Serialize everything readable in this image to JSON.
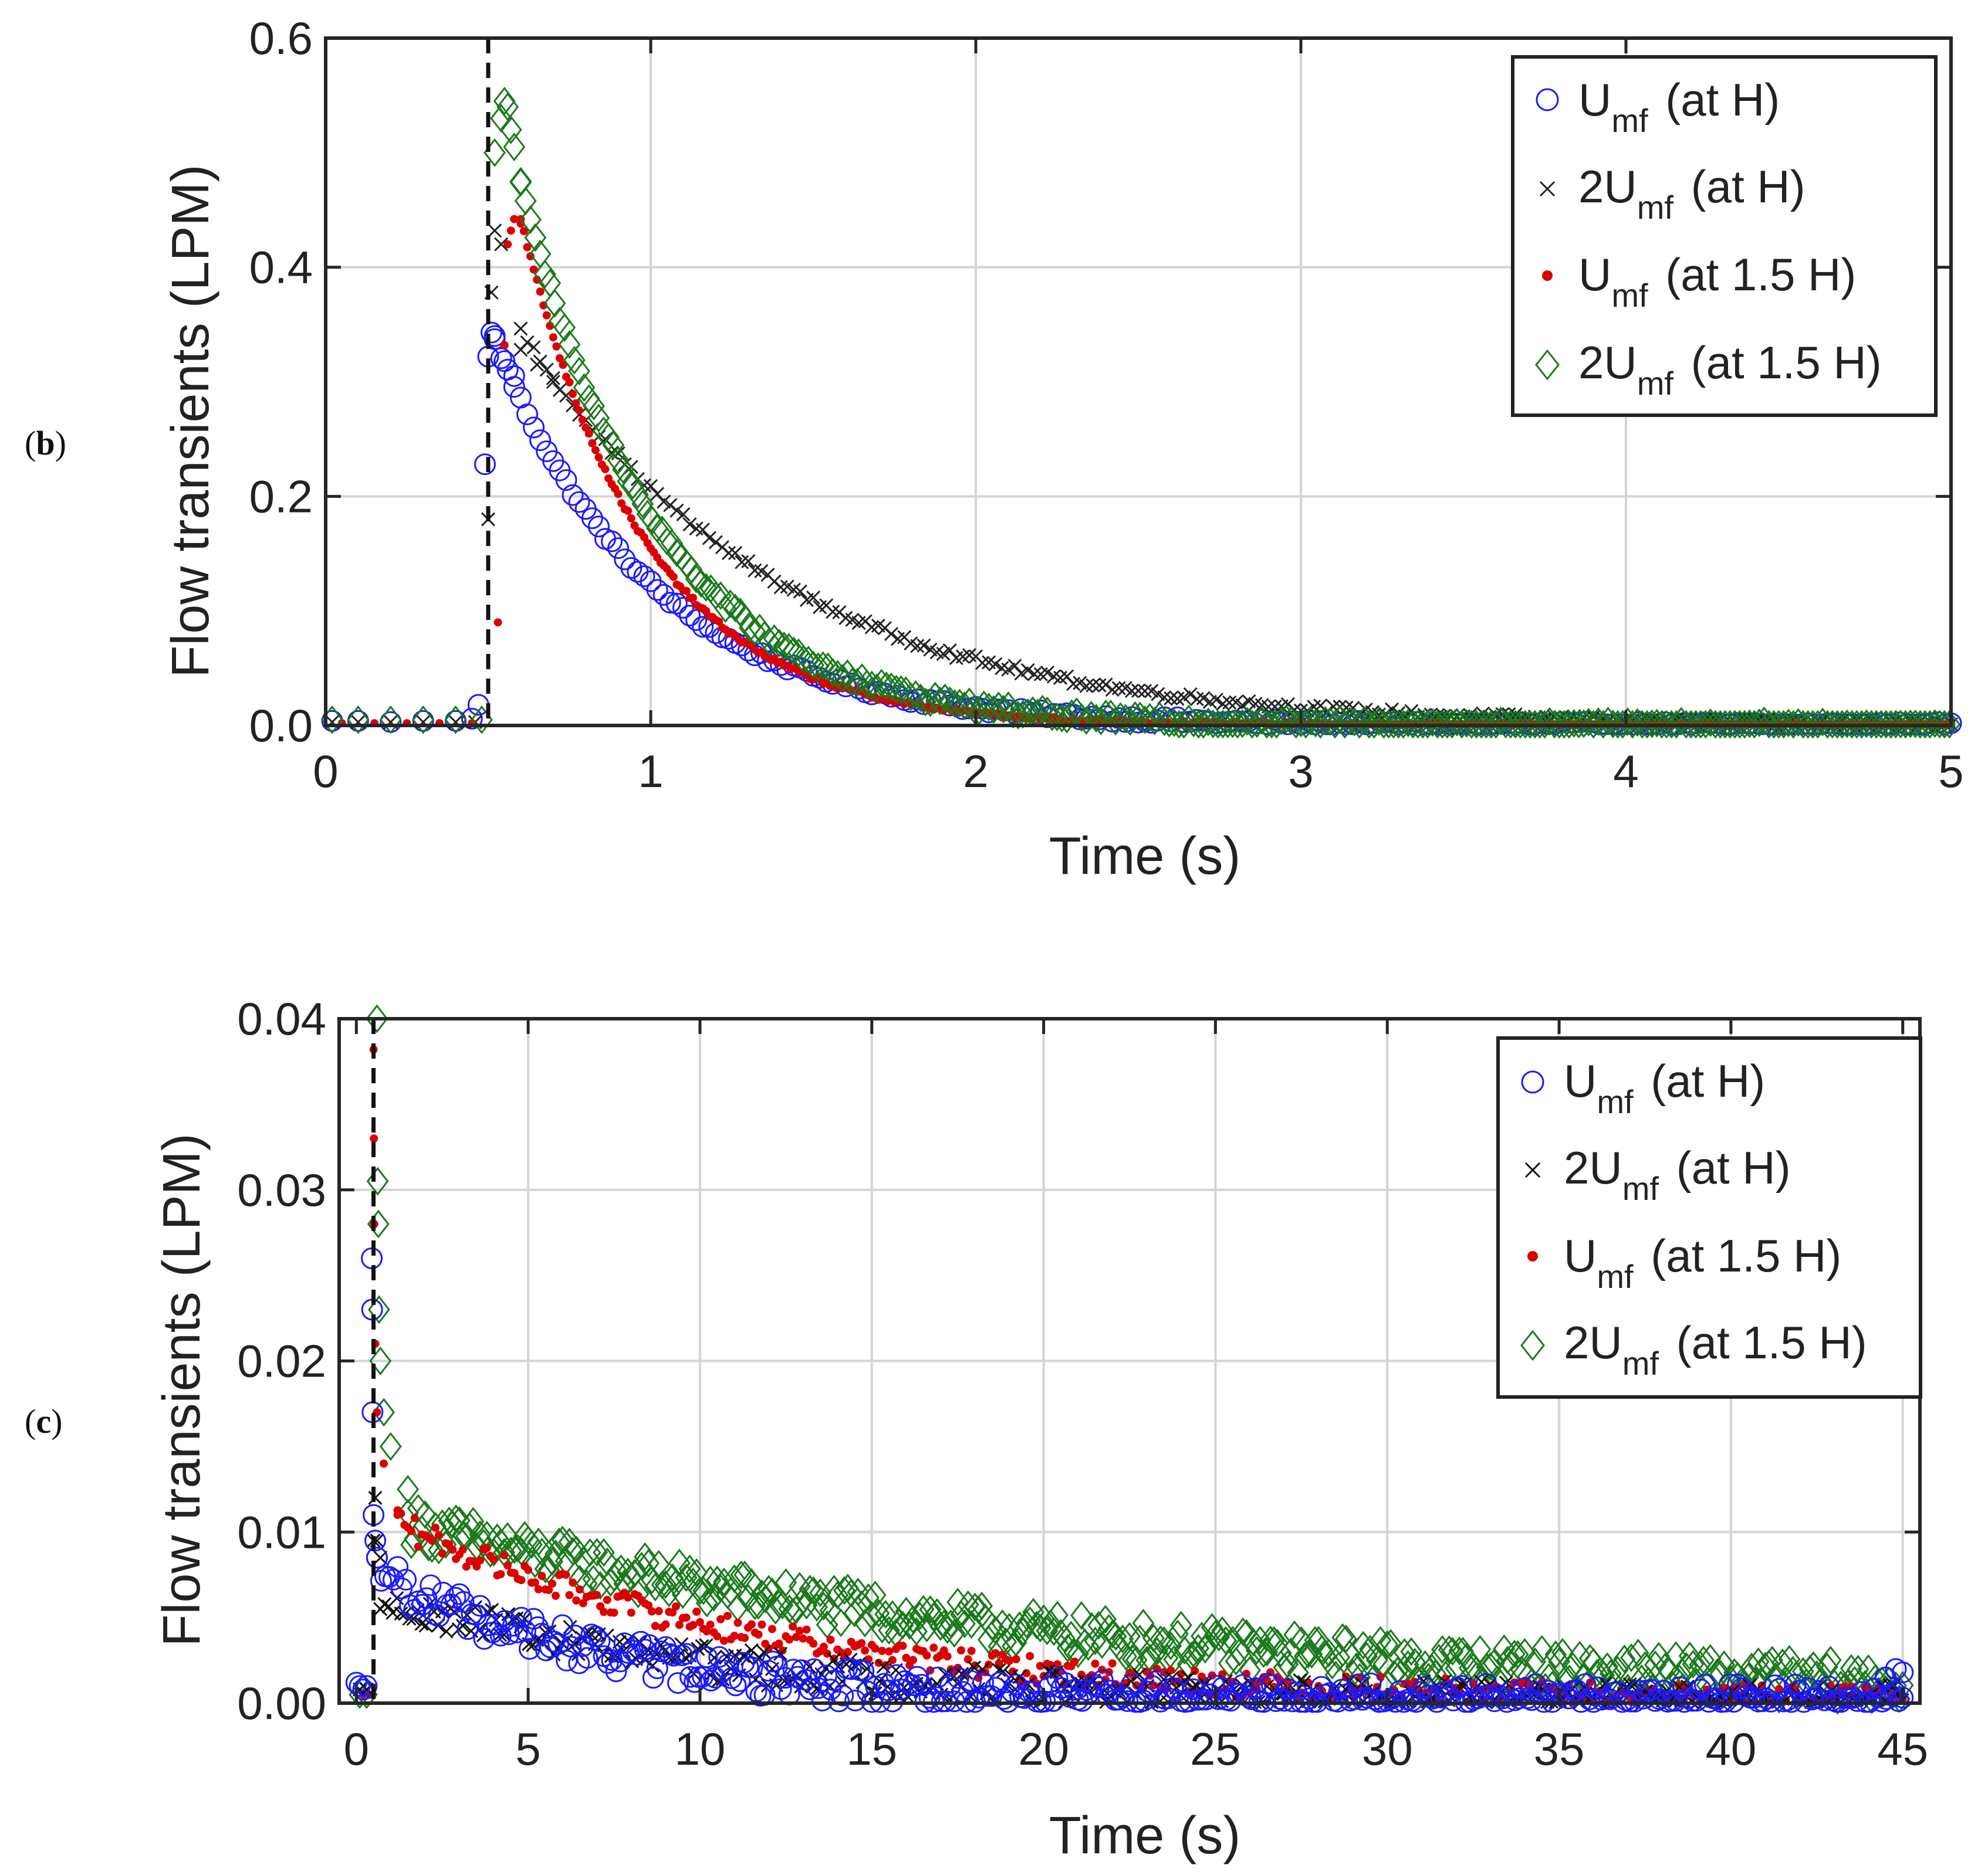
{
  "panels": [
    {
      "label_letter": "b"
    },
    {
      "label_letter": "c"
    }
  ],
  "legend_common": {
    "sub": "mf"
  },
  "chart_data": [
    {
      "id": "b",
      "type": "scatter",
      "xlabel": "Time (s)",
      "ylabel": "Flow transients (LPM)",
      "xlim": [
        0,
        5
      ],
      "ylim": [
        0,
        0.6
      ],
      "xticks": [
        0,
        1,
        2,
        3,
        4,
        5
      ],
      "xtick_labels": [
        "0",
        "1",
        "2",
        "3",
        "4",
        "5"
      ],
      "yticks": [
        0.0,
        0.2,
        0.4,
        0.6
      ],
      "ytick_labels": [
        "0.0",
        "0.2",
        "0.4",
        "0.6"
      ],
      "grid": true,
      "legend_position": "top-right",
      "step_time_s": 0.5,
      "series": [
        {
          "name": "Umf (at H)",
          "legend_pre": "U",
          "legend_post": " (at H)",
          "marker": "circle",
          "color": "#1a1aff",
          "pre": [
            [
              0.02,
              0.004
            ],
            [
              0.1,
              0.004
            ],
            [
              0.2,
              0.003
            ],
            [
              0.3,
              0.004
            ],
            [
              0.4,
              0.004
            ],
            [
              0.45,
              0.006
            ],
            [
              0.47,
              0.018
            ]
          ],
          "jump": [
            [
              0.49,
              0.228
            ],
            [
              0.5,
              0.322
            ],
            [
              0.51,
              0.343
            ],
            [
              0.52,
              0.34
            ],
            [
              0.55,
              0.318
            ],
            [
              0.58,
              0.305
            ]
          ],
          "decay": {
            "amp": 0.336,
            "tau": 0.48,
            "t0": 0.52,
            "t1": 5.0,
            "step": 0.02,
            "noise": 0.003
          }
        },
        {
          "name": "2Umf (at H)",
          "legend_pre": "2U",
          "legend_post": " (at H)",
          "marker": "x",
          "color": "#222222",
          "pre": [
            [
              0.02,
              0.003
            ],
            [
              0.1,
              0.003
            ],
            [
              0.2,
              0.003
            ],
            [
              0.3,
              0.003
            ],
            [
              0.4,
              0.003
            ],
            [
              0.46,
              0.003
            ]
          ],
          "jump": [
            [
              0.5,
              0.18
            ],
            [
              0.51,
              0.378
            ],
            [
              0.52,
              0.432
            ],
            [
              0.54,
              0.42
            ],
            [
              0.6,
              0.328
            ],
            [
              0.65,
              0.315
            ],
            [
              0.7,
              0.3
            ]
          ],
          "decay": {
            "amp": 0.345,
            "tau": 0.78,
            "t0": 0.6,
            "t1": 5.0,
            "step": 0.02,
            "noise": 0.003
          }
        },
        {
          "name": "Umf (at 1.5 H)",
          "legend_pre": "U",
          "legend_post": " (at 1.5 H)",
          "marker": "dot",
          "color": "#dd0000",
          "pre": [
            [
              0.05,
              0.002
            ],
            [
              0.15,
              0.002
            ],
            [
              0.25,
              0.002
            ],
            [
              0.35,
              0.002
            ],
            [
              0.45,
              0.002
            ]
          ],
          "jump": [
            [
              0.53,
              0.09
            ],
            [
              0.55,
              0.332
            ],
            [
              0.56,
              0.42
            ],
            [
              0.57,
              0.432
            ],
            [
              0.58,
              0.442
            ],
            [
              0.6,
              0.438
            ]
          ],
          "decay": {
            "amp": 0.442,
            "tau": 0.38,
            "t0": 0.6,
            "t1": 5.0,
            "step": 0.01,
            "noise": 0.002
          }
        },
        {
          "name": "2Umf (at 1.5 H)",
          "legend_pre": "2U",
          "legend_post": " (at 1.5 H)",
          "marker": "diamond",
          "color": "#1a7a1a",
          "pre": [
            [
              0.02,
              0.005
            ],
            [
              0.1,
              0.005
            ],
            [
              0.2,
              0.005
            ],
            [
              0.3,
              0.005
            ],
            [
              0.4,
              0.005
            ],
            [
              0.48,
              0.005
            ]
          ],
          "jump": [
            [
              0.52,
              0.5
            ],
            [
              0.54,
              0.53
            ],
            [
              0.55,
              0.545
            ],
            [
              0.56,
              0.54
            ],
            [
              0.57,
              0.52
            ],
            [
              0.58,
              0.505
            ],
            [
              0.6,
              0.475
            ]
          ],
          "decay": {
            "amp": 0.475,
            "tau": 0.42,
            "t0": 0.6,
            "t1": 5.0,
            "step": 0.015,
            "noise": 0.004
          }
        }
      ]
    },
    {
      "id": "c",
      "type": "scatter",
      "xlabel": "Time (s)",
      "ylabel": "Flow transients (LPM)",
      "xlim": [
        -0.5,
        45.5
      ],
      "ylim": [
        0,
        0.04
      ],
      "xticks": [
        0,
        5,
        10,
        15,
        20,
        25,
        30,
        35,
        40,
        45
      ],
      "xtick_labels": [
        "0",
        "5",
        "10",
        "15",
        "20",
        "25",
        "30",
        "35",
        "40",
        "45"
      ],
      "yticks": [
        0.0,
        0.01,
        0.02,
        0.03,
        0.04
      ],
      "ytick_labels": [
        "0.00",
        "0.01",
        "0.02",
        "0.03",
        "0.04"
      ],
      "grid": true,
      "legend_position": "top-right",
      "step_time_s": 0.5,
      "series": [
        {
          "name": "Umf (at H)",
          "legend_pre": "U",
          "legend_post": " (at H)",
          "marker": "circle",
          "color": "#1a1aff",
          "pre": [
            [
              0.0,
              0.0012
            ],
            [
              0.1,
              0.001
            ],
            [
              0.2,
              0.0008
            ],
            [
              0.3,
              0.001
            ]
          ],
          "jump": [
            [
              0.45,
              0.026
            ],
            [
              0.46,
              0.023
            ],
            [
              0.47,
              0.017
            ],
            [
              0.5,
              0.011
            ],
            [
              0.55,
              0.0095
            ],
            [
              0.6,
              0.0085
            ]
          ],
          "decay": {
            "amp": 0.0075,
            "tau": 7.0,
            "t0": 0.6,
            "t1": 45.0,
            "step": 0.12,
            "noise": 0.0011
          },
          "tail": [
            [
              44.5,
              0.0015
            ],
            [
              44.8,
              0.002
            ],
            [
              45.0,
              0.0018
            ]
          ]
        },
        {
          "name": "2Umf (at H)",
          "legend_pre": "2U",
          "legend_post": " (at H)",
          "marker": "x",
          "color": "#111111",
          "pre": [
            [
              0.1,
              0.0008
            ],
            [
              0.3,
              0.0008
            ]
          ],
          "jump": [
            [
              0.5,
              0.0095
            ],
            [
              0.55,
              0.012
            ],
            [
              0.6,
              0.0095
            ],
            [
              0.7,
              0.0085
            ]
          ],
          "decay": {
            "amp": 0.0062,
            "tau": 10.0,
            "t0": 0.7,
            "t1": 45.0,
            "step": 0.12,
            "noise": 0.001
          }
        },
        {
          "name": "Umf (at 1.5 H)",
          "legend_pre": "U",
          "legend_post": " (at 1.5 H)",
          "marker": "dot",
          "color": "#dd0000",
          "pre": [
            [
              0.2,
              0.0005
            ],
            [
              0.4,
              0.0005
            ]
          ],
          "jump": [
            [
              0.5,
              0.0382
            ],
            [
              0.51,
              0.033
            ],
            [
              0.52,
              0.028
            ],
            [
              0.55,
              0.021
            ],
            [
              0.6,
              0.017
            ],
            [
              0.8,
              0.014
            ],
            [
              1.2,
              0.011
            ]
          ],
          "decay": {
            "amp": 0.0105,
            "tau": 11.0,
            "t0": 1.2,
            "t1": 45.0,
            "step": 0.1,
            "noise": 0.0008
          }
        },
        {
          "name": "2Umf (at 1.5 H)",
          "legend_pre": "2U",
          "legend_post": " (at 1.5 H)",
          "marker": "diamond",
          "color": "#1a7a1a",
          "pre": [
            [
              0.1,
              0.0005
            ],
            [
              0.3,
              0.0005
            ]
          ],
          "jump": [
            [
              0.6,
              0.04
            ],
            [
              0.62,
              0.0305
            ],
            [
              0.64,
              0.028
            ],
            [
              0.66,
              0.023
            ],
            [
              0.7,
              0.02
            ],
            [
              0.8,
              0.017
            ],
            [
              1.0,
              0.015
            ],
            [
              1.5,
              0.0125
            ]
          ],
          "decay": {
            "amp": 0.0105,
            "tau": 20.0,
            "t0": 1.5,
            "t1": 45.0,
            "step": 0.1,
            "noise": 0.0012
          }
        }
      ]
    }
  ]
}
